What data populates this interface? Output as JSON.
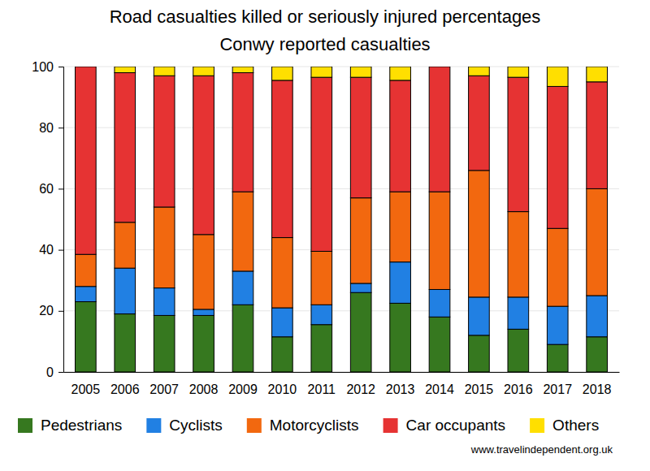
{
  "chart_data": {
    "type": "bar",
    "stacked": true,
    "grid": true,
    "title": "Road casualties killed or seriously injured percentages",
    "subtitle": "Conwy reported casualties",
    "annotations": [
      "www.travelindependent.org.uk"
    ],
    "categories": [
      "2005",
      "2006",
      "2007",
      "2008",
      "2009",
      "2010",
      "2011",
      "2012",
      "2013",
      "2014",
      "2015",
      "2016",
      "2017",
      "2018"
    ],
    "ylim": [
      0,
      100
    ],
    "yticks": [
      0,
      20,
      40,
      60,
      80,
      100
    ],
    "legend": "bottom",
    "series": [
      {
        "name": "Pedestrians",
        "color": "#36781f",
        "values": [
          23,
          19,
          18.5,
          18.5,
          22,
          11.5,
          15.5,
          26,
          22.5,
          18,
          12,
          14,
          9,
          11.5
        ]
      },
      {
        "name": "Cyclists",
        "color": "#2180e3",
        "values": [
          5,
          15,
          9,
          2,
          11,
          9.5,
          6.5,
          3,
          13.5,
          9,
          12.5,
          10.5,
          12.5,
          13.5
        ]
      },
      {
        "name": "Motorcyclists",
        "color": "#f2680f",
        "values": [
          10.5,
          15,
          26.5,
          24.5,
          26,
          23,
          17.5,
          28,
          23,
          32,
          41.5,
          28,
          25.5,
          35
        ]
      },
      {
        "name": "Car occupants",
        "color": "#e63333",
        "values": [
          61.5,
          49,
          43,
          52,
          39,
          51.5,
          57,
          39.5,
          36.5,
          41,
          31,
          44,
          46.5,
          35
        ]
      },
      {
        "name": "Others",
        "color": "#ffdf00",
        "values": [
          0,
          2,
          3,
          3,
          2,
          4.5,
          3.5,
          3.5,
          4.5,
          0,
          3,
          3.5,
          6.5,
          5
        ]
      }
    ]
  }
}
